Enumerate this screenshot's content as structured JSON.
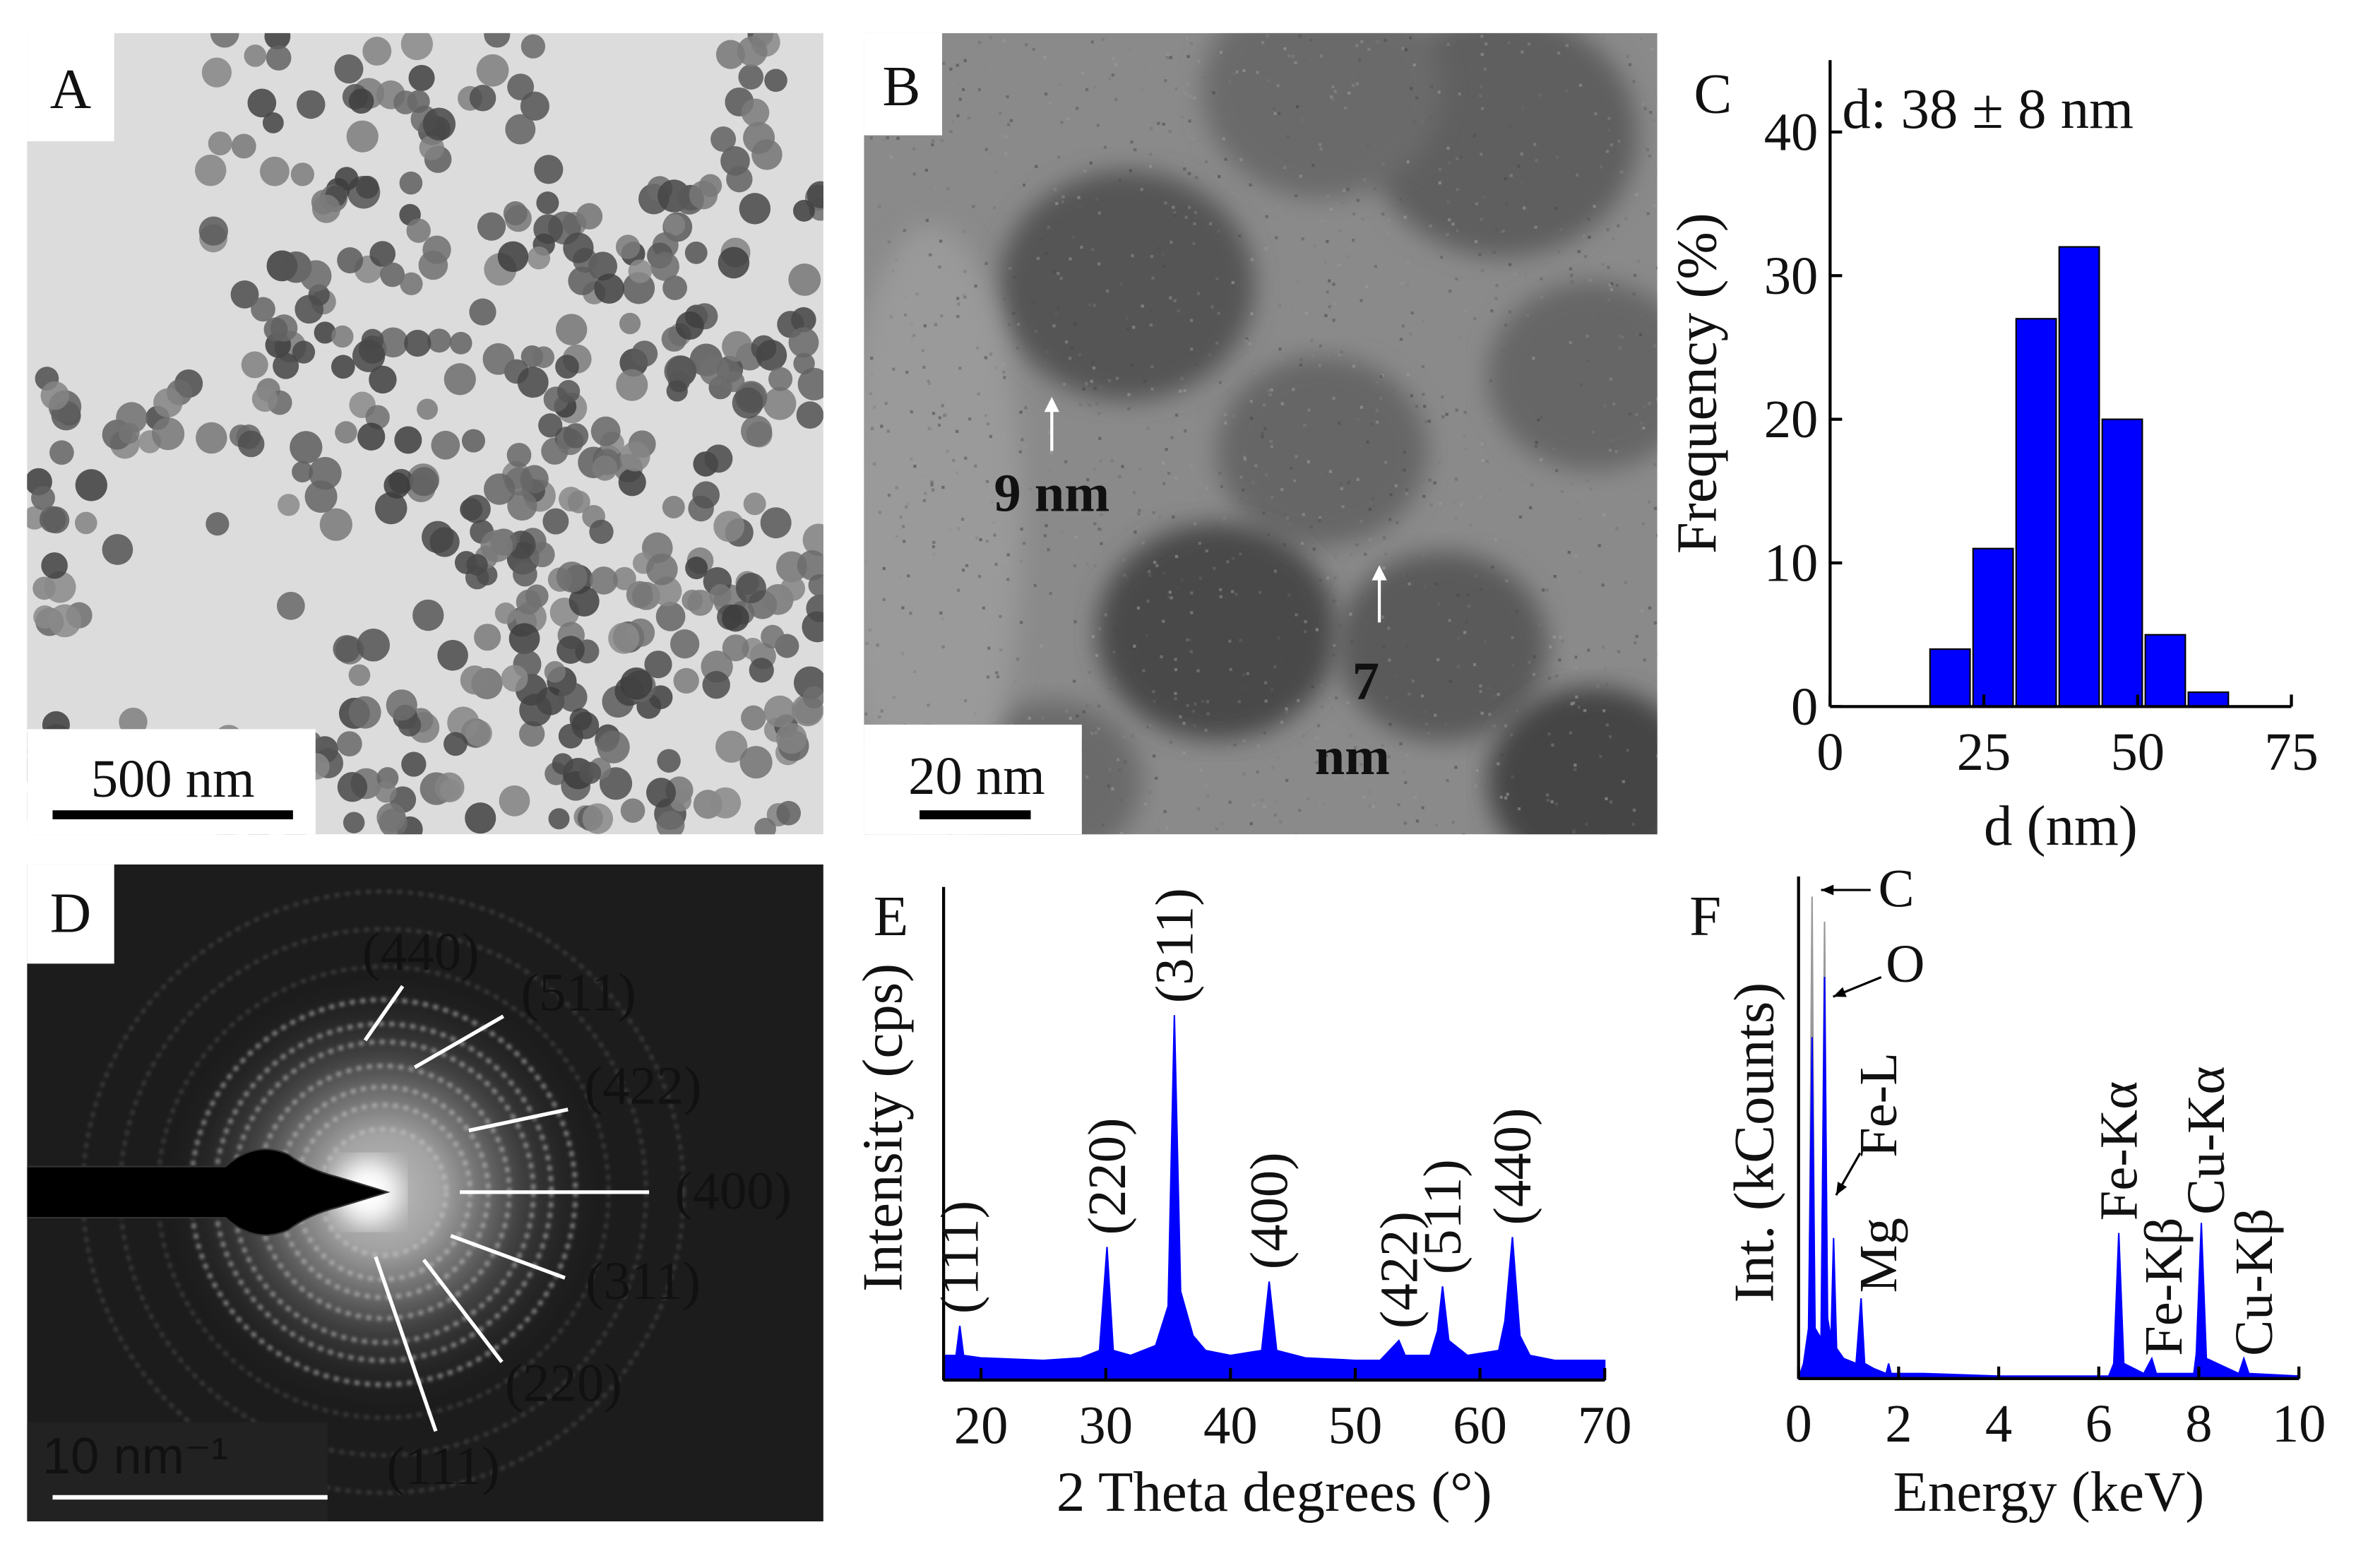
{
  "images": [
    {
      "label": "A",
      "scale_bar": "500 nm"
    },
    {
      "label": "B",
      "scale_bar": "20 nm",
      "annotations": [
        {
          "lines": [
            "9 nm"
          ]
        },
        {
          "lines": [
            "7",
            "nm"
          ]
        }
      ]
    },
    {
      "label": "D",
      "scale_bar": "10 nm⁻¹",
      "annotations": [
        "(440)",
        "(511)",
        "(422)",
        "(400)",
        "(311)",
        "(220)",
        "(111)"
      ]
    }
  ],
  "chart_data": [
    {
      "type": "histogram",
      "panel_label": "C",
      "annotation": "d: 38 ± 8 nm",
      "xlabel": "d (nm)",
      "ylabel": "Frequency (%)",
      "bins": [
        16,
        23,
        30,
        37,
        44,
        51,
        58,
        65
      ],
      "values": [
        4,
        11,
        27,
        32,
        20,
        5,
        1
      ],
      "color": "#0000ff",
      "xlim": [
        0,
        75
      ],
      "ylim": [
        0,
        45
      ],
      "xticks": [
        0,
        25,
        50,
        75
      ],
      "yticks": [
        0,
        10,
        20,
        30,
        40
      ]
    },
    {
      "type": "area",
      "panel_label": "E",
      "xlabel": "2 Theta degrees (°)",
      "ylabel": "Intensity (cps)",
      "xlim": [
        17,
        70
      ],
      "ylim": [
        0,
        100
      ],
      "xticks": [
        20,
        30,
        40,
        50,
        60,
        70
      ],
      "x": [
        17,
        18,
        18.3,
        18.6,
        20,
        25,
        28,
        29.5,
        30.1,
        30.6,
        32,
        34,
        35,
        35.5,
        36,
        37,
        38,
        40,
        42.5,
        43.1,
        43.7,
        46,
        50,
        52,
        53.5,
        54,
        56,
        56.6,
        57,
        57.5,
        59,
        61.5,
        62,
        62.6,
        63.2,
        64,
        66,
        70
      ],
      "series": [
        {
          "color": "#0000ff",
          "values": [
            5,
            5,
            11,
            5,
            4.5,
            4,
            4.5,
            6,
            27,
            6,
            5,
            7,
            15,
            74,
            18,
            9,
            6,
            5,
            6,
            20,
            6,
            4.5,
            4,
            4,
            8,
            5,
            5,
            10,
            19,
            8,
            5,
            6,
            12,
            29,
            9,
            5,
            4,
            4
          ]
        }
      ],
      "annotations": [
        {
          "text": "(111)",
          "x": 18.3
        },
        {
          "text": "(220)",
          "x": 30.1
        },
        {
          "text": "(311)",
          "x": 35.5
        },
        {
          "text": "(400)",
          "x": 43.1
        },
        {
          "text": "(422)",
          "x": 53.5
        },
        {
          "text": "(511)",
          "x": 57
        },
        {
          "text": "(440)",
          "x": 62.6
        }
      ]
    },
    {
      "type": "area",
      "panel_label": "F",
      "xlabel": "Energy (keV)",
      "ylabel": "Int. (kCounts)",
      "xlim": [
        0,
        10
      ],
      "ylim": [
        0,
        100
      ],
      "xticks": [
        0,
        2,
        4,
        6,
        8,
        10
      ],
      "x": [
        0,
        0.1,
        0.2,
        0.27,
        0.33,
        0.45,
        0.52,
        0.58,
        0.65,
        0.7,
        0.76,
        0.9,
        1.15,
        1.25,
        1.32,
        1.5,
        1.75,
        1.8,
        1.85,
        2.5,
        4,
        6.2,
        6.3,
        6.4,
        6.5,
        6.9,
        7.06,
        7.15,
        7.9,
        7.95,
        8.05,
        8.15,
        8.8,
        8.9,
        9,
        10
      ],
      "series": [
        {
          "color": "#0000ff",
          "values": [
            0,
            3,
            10,
            68,
            10,
            8,
            80,
            12,
            8,
            28,
            6,
            4,
            3,
            16,
            3,
            2,
            1,
            3,
            1,
            1,
            0.5,
            0.5,
            3,
            29,
            3,
            1,
            4,
            1,
            1,
            5,
            31,
            4,
            1,
            4,
            1,
            0.5
          ]
        },
        {
          "color": "#999999",
          "values": [
            0,
            0,
            0,
            96,
            0,
            0,
            91,
            0,
            0,
            0,
            0,
            0,
            0,
            0,
            0,
            0,
            0,
            0,
            0,
            0,
            0,
            0,
            0,
            0,
            0,
            0,
            0,
            0,
            0,
            0,
            0,
            0,
            0,
            0,
            0,
            0
          ]
        }
      ],
      "annotations": [
        {
          "text": "C",
          "x": 0.27
        },
        {
          "text": "O",
          "x": 0.52
        },
        {
          "text": "Fe-L",
          "x": 0.7
        },
        {
          "text": "Mg",
          "x": 1.25
        },
        {
          "text": "Fe-Kα",
          "x": 6.4
        },
        {
          "text": "Fe-Kβ",
          "x": 7.06
        },
        {
          "text": "Cu-Kα",
          "x": 8.05
        },
        {
          "text": "Cu-Kβ",
          "x": 8.9
        }
      ]
    }
  ]
}
